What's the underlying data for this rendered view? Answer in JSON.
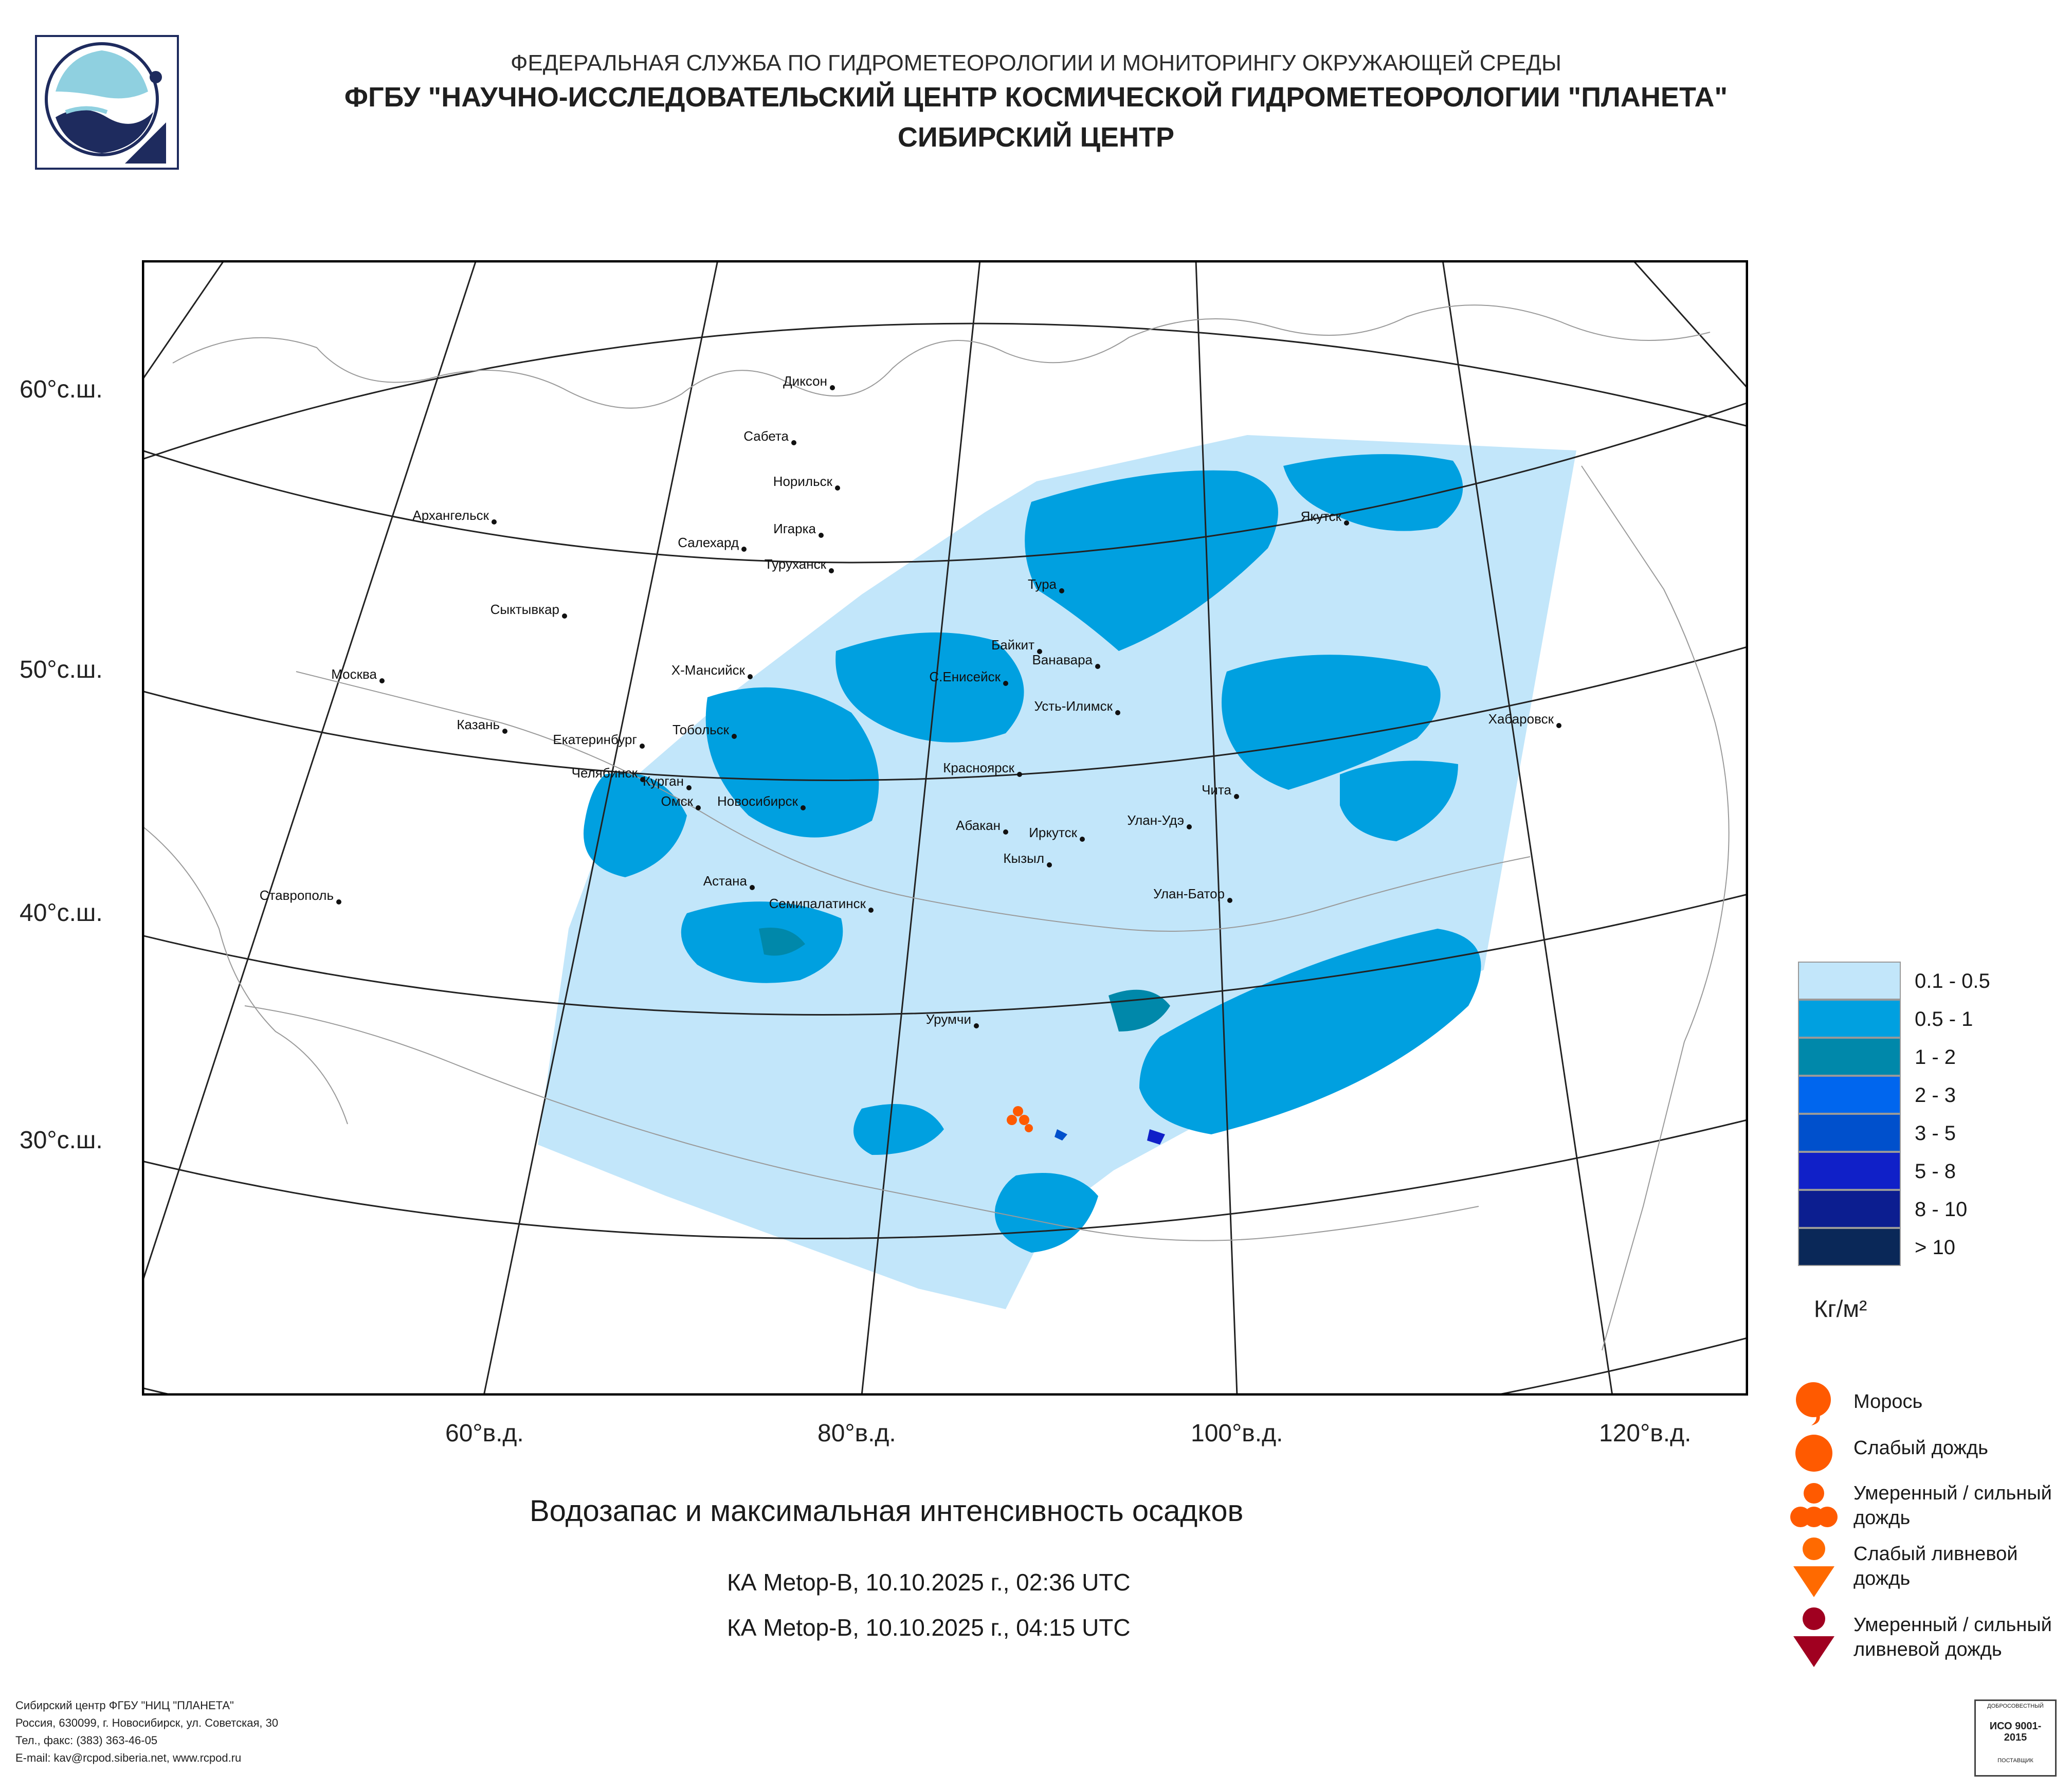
{
  "header": {
    "line1": "ФЕДЕРАЛЬНАЯ СЛУЖБА ПО ГИДРОМЕТЕОРОЛОГИИ И МОНИТОРИНГУ ОКРУЖАЮЩЕЙ СРЕДЫ",
    "line2": "ФГБУ \"НАУЧНО-ИССЛЕДОВАТЕЛЬСКИЙ ЦЕНТР КОСМИЧЕСКОЙ ГИДРОМЕТЕОРОЛОГИИ \"ПЛАНЕТА\"",
    "line3": "СИБИРСКИЙ ЦЕНТР"
  },
  "map": {
    "lat_labels": [
      "60°с.ш.",
      "50°с.ш.",
      "40°с.ш.",
      "30°с.ш."
    ],
    "lon_labels": [
      "60°в.д.",
      "80°в.д.",
      "100°в.д.",
      "120°в.д."
    ],
    "cities": [
      {
        "name": "Диксон"
      },
      {
        "name": "Сабета"
      },
      {
        "name": "Норильск"
      },
      {
        "name": "Игарка"
      },
      {
        "name": "Туруханск"
      },
      {
        "name": "Салехард"
      },
      {
        "name": "Архангельск"
      },
      {
        "name": "Сыктывкар"
      },
      {
        "name": "Якутск"
      },
      {
        "name": "Тура"
      },
      {
        "name": "Байкит"
      },
      {
        "name": "Ванавара"
      },
      {
        "name": "С.Енисейск"
      },
      {
        "name": "Усть-Илимск"
      },
      {
        "name": "Х-Мансийск"
      },
      {
        "name": "Москва"
      },
      {
        "name": "Казань"
      },
      {
        "name": "Екатеринбург"
      },
      {
        "name": "Тобольск"
      },
      {
        "name": "Хабаровск"
      },
      {
        "name": "Челябинск"
      },
      {
        "name": "Курган"
      },
      {
        "name": "Омск"
      },
      {
        "name": "Новосибирск"
      },
      {
        "name": "Красноярск"
      },
      {
        "name": "Абакан"
      },
      {
        "name": "Иркутск"
      },
      {
        "name": "Улан-Удэ"
      },
      {
        "name": "Чита"
      },
      {
        "name": "Кызыл"
      },
      {
        "name": "Астана"
      },
      {
        "name": "Семипалатинск"
      },
      {
        "name": "Улан-Батор"
      },
      {
        "name": "Ставрополь"
      },
      {
        "name": "Урумчи"
      }
    ]
  },
  "legend": {
    "unit": "Кг/м²",
    "items": [
      {
        "label": "0.1 - 0.5",
        "color": "#c2e6fa"
      },
      {
        "label": "0.5 - 1",
        "color": "#00a0e0"
      },
      {
        "label": "1 - 2",
        "color": "#0088aa"
      },
      {
        "label": "2 - 3",
        "color": "#0066ee"
      },
      {
        "label": "3 - 5",
        "color": "#0050cc"
      },
      {
        "label": "5 - 8",
        "color": "#1020c8"
      },
      {
        "label": "8 - 10",
        "color": "#0c1e90"
      },
      {
        "label": "> 10",
        "color": "#0a2858"
      }
    ]
  },
  "symbols": [
    {
      "label": "Морось",
      "icon": "drizzle-icon",
      "color": "#ff5a00"
    },
    {
      "label": "Слабый дождь",
      "icon": "light-rain-icon",
      "color": "#ff5a00"
    },
    {
      "label": "Умеренный / сильный дождь",
      "icon": "heavy-rain-icon",
      "color": "#ff5a00"
    },
    {
      "label": "Слабый ливневой дождь",
      "icon": "light-shower-icon",
      "color": "#ff6a00"
    },
    {
      "label": "Умеренный / сильный ливневой дождь",
      "icon": "heavy-shower-icon",
      "color": "#a00020"
    }
  ],
  "titles": {
    "main": "Водозапас и максимальная интенсивность осадков",
    "pass1": "КА Metop-B, 10.10.2025 г., 02:36 UTC",
    "pass2": "КА Metop-B, 10.10.2025 г., 04:15 UTC"
  },
  "footer": {
    "line1": "Сибирский центр ФГБУ \"НИЦ \"ПЛАНЕТА\"",
    "line2": "Россия, 630099, г. Новосибирск, ул. Советская, 30",
    "line3": "Тел., факс: (383) 363-46-05",
    "line4": "E-mail: kav@rcpod.siberia.net, www.rcpod.ru"
  },
  "certificate": {
    "top": "ДОБРОСОВЕСТНЫЙ",
    "iso": "ИСО 9001-2015",
    "bottom": "ПОСТАВЩИК"
  }
}
